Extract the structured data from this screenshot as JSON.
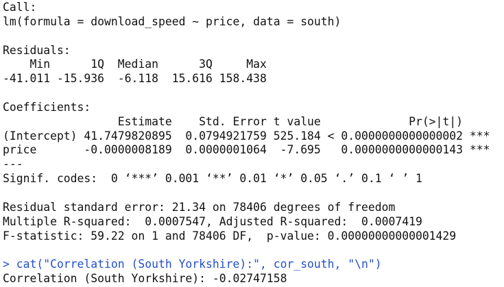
{
  "blocks": [
    {
      "lines": [
        "Call:",
        "lm(formula = download_speed ~ price, data = south)"
      ]
    },
    {
      "lines": [
        "Residuals:",
        "    Min      1Q  Median      3Q     Max ",
        "-41.011 -15.936  -6.118  15.616 158.438 "
      ]
    },
    {
      "lines": [
        "Coefficients:",
        "                 Estimate    Std. Error t value             Pr(>|t|)    ",
        "(Intercept) 41.7479820895  0.0794921759 525.184 < 0.0000000000000002 ***",
        "price       -0.0000008189  0.0000001064  -7.695   0.0000000000000143 ***",
        "---",
        "Signif. codes:  0 ‘***’ 0.001 ‘**’ 0.01 ‘*’ 0.05 ‘.’ 0.1 ‘ ’ 1"
      ]
    },
    {
      "lines": [
        "Residual standard error: 21.34 on 78406 degrees of freedom",
        "Multiple R-squared:  0.0007547,\tAdjusted R-squared:  0.0007419 ",
        "F-statistic: 59.22 on 1 and 78406 DF,  p-value: 0.00000000000001429"
      ]
    },
    {
      "lines": [
        "> cat(\"Correlation (South Yorkshire):\", cor_south, \"\\n\")"
      ],
      "command": true
    },
    {
      "lines": [
        "Correlation (South Yorkshire): -0.02747158 "
      ]
    }
  ]
}
